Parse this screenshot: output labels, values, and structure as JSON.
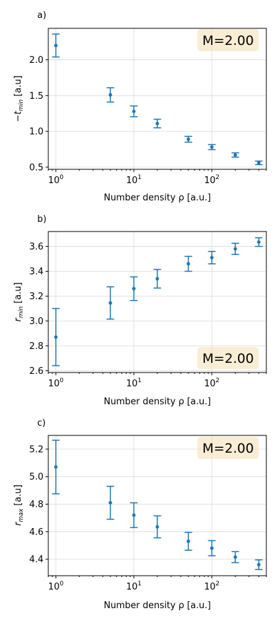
{
  "chart_data": [
    {
      "type": "scatter",
      "panel_label": "a)",
      "xlabel": "Number density ρ [a.u.]",
      "ylabel": "−t_min [a.u]",
      "ylabel_main": "−t",
      "ylabel_sub": "min",
      "ylabel_tail": " [a.u]",
      "xscale": "log",
      "xlim": [
        0.8,
        500
      ],
      "ylim": [
        0.47,
        2.44
      ],
      "yticks": [
        0.5,
        1.0,
        1.5,
        2.0
      ],
      "ytick_labels": [
        "0.5",
        "1.0",
        "1.5",
        "2.0"
      ],
      "annotation": "M=2.00",
      "annotation_position": "top-right",
      "grid": true,
      "x": [
        1,
        5,
        10,
        20,
        50,
        100,
        200,
        400
      ],
      "y": [
        2.2,
        1.51,
        1.28,
        1.11,
        0.89,
        0.78,
        0.67,
        0.56
      ],
      "yerr": [
        0.16,
        0.1,
        0.075,
        0.06,
        0.04,
        0.035,
        0.03,
        0.025
      ]
    },
    {
      "type": "scatter",
      "panel_label": "b)",
      "xlabel": "Number density ρ [a.u.]",
      "ylabel": "r_min [a.u]",
      "ylabel_main": "r",
      "ylabel_sub": "min",
      "ylabel_tail": " [a.u]",
      "xscale": "log",
      "xlim": [
        0.8,
        500
      ],
      "ylim": [
        2.585,
        3.72
      ],
      "yticks": [
        2.6,
        2.8,
        3.0,
        3.2,
        3.4,
        3.6
      ],
      "ytick_labels": [
        "2.6",
        "2.8",
        "3.0",
        "3.2",
        "3.4",
        "3.6"
      ],
      "annotation": "M=2.00",
      "annotation_position": "bottom-right",
      "grid": true,
      "x": [
        1,
        5,
        10,
        20,
        50,
        100,
        200,
        400
      ],
      "y": [
        2.87,
        3.145,
        3.26,
        3.34,
        3.46,
        3.51,
        3.58,
        3.635
      ],
      "yerr": [
        0.23,
        0.13,
        0.095,
        0.075,
        0.06,
        0.05,
        0.045,
        0.035
      ]
    },
    {
      "type": "scatter",
      "panel_label": "c)",
      "xlabel": "Number density ρ [a.u.]",
      "ylabel": "r_max [a.u]",
      "ylabel_main": "r",
      "ylabel_sub": "max",
      "ylabel_tail": " [a.u]",
      "xscale": "log",
      "xlim": [
        0.8,
        500
      ],
      "ylim": [
        4.28,
        5.3
      ],
      "yticks": [
        4.4,
        4.6,
        4.8,
        5.0,
        5.2
      ],
      "ytick_labels": [
        "4.4",
        "4.6",
        "4.8",
        "5.0",
        "5.2"
      ],
      "annotation": "M=2.00",
      "annotation_position": "top-right",
      "grid": true,
      "x": [
        1,
        5,
        10,
        20,
        50,
        100,
        200,
        400
      ],
      "y": [
        5.07,
        4.81,
        4.72,
        4.635,
        4.53,
        4.48,
        4.415,
        4.36
      ],
      "yerr": [
        0.195,
        0.12,
        0.09,
        0.08,
        0.065,
        0.055,
        0.04,
        0.035
      ]
    }
  ],
  "xtick_labels": [
    {
      "base": "10",
      "exp": "0"
    },
    {
      "base": "10",
      "exp": "1"
    },
    {
      "base": "10",
      "exp": "2"
    }
  ],
  "colors": {
    "series": "#1f77b4",
    "annotation_box": "#f5deb3",
    "grid": "#d9d9d9"
  }
}
